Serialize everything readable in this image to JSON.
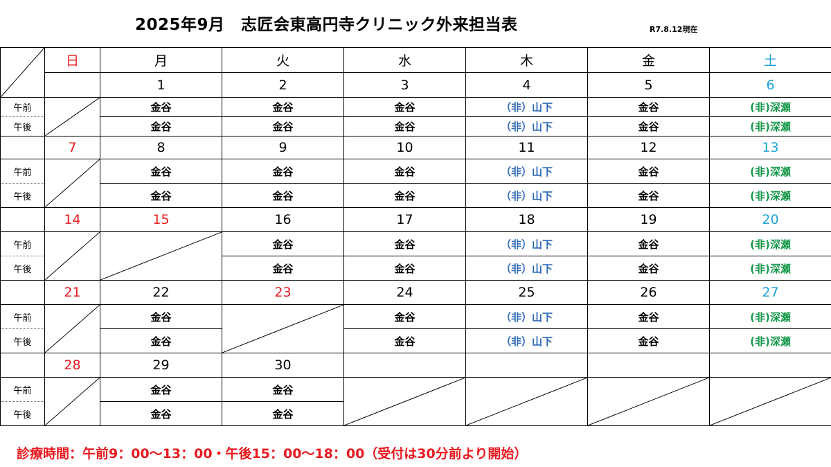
{
  "title": "2025年9月　志匠会東高円寺クリニック外来担当表",
  "as_of": "R7.8.12現在",
  "weekdays": [
    "日",
    "月",
    "火",
    "水",
    "木",
    "金",
    "土"
  ],
  "session_labels": {
    "am": "午前",
    "pm": "午後"
  },
  "weeks": [
    {
      "dates": [
        "",
        "1",
        "2",
        "3",
        "4",
        "5",
        "6"
      ],
      "am": [
        "",
        "金谷",
        "金谷",
        "金谷",
        "（非）山下",
        "金谷",
        "(非)深瀬"
      ],
      "pm": [
        "",
        "金谷",
        "金谷",
        "金谷",
        "（非）山下",
        "金谷",
        "(非)深瀬"
      ]
    },
    {
      "dates": [
        "7",
        "8",
        "9",
        "10",
        "11",
        "12",
        "13"
      ],
      "am": [
        "",
        "金谷",
        "金谷",
        "金谷",
        "（非）山下",
        "金谷",
        "(非)深瀬"
      ],
      "pm": [
        "",
        "金谷",
        "金谷",
        "金谷",
        "（非）山下",
        "金谷",
        "(非)深瀬"
      ]
    },
    {
      "dates": [
        "14",
        "15",
        "16",
        "17",
        "18",
        "19",
        "20"
      ],
      "am": [
        "",
        "",
        "金谷",
        "金谷",
        "（非）山下",
        "金谷",
        "(非)深瀬"
      ],
      "pm": [
        "",
        "",
        "金谷",
        "金谷",
        "（非）山下",
        "金谷",
        "(非)深瀬"
      ]
    },
    {
      "dates": [
        "21",
        "22",
        "23",
        "24",
        "25",
        "26",
        "27"
      ],
      "am": [
        "",
        "金谷",
        "",
        "金谷",
        "（非）山下",
        "金谷",
        "(非)深瀬"
      ],
      "pm": [
        "",
        "金谷",
        "",
        "金谷",
        "（非）山下",
        "金谷",
        "(非)深瀬"
      ]
    },
    {
      "dates": [
        "28",
        "29",
        "30",
        "",
        "",
        "",
        ""
      ],
      "am": [
        "",
        "金谷",
        "金谷",
        "",
        "",
        "",
        ""
      ],
      "pm": [
        "",
        "金谷",
        "金谷",
        "",
        "",
        "",
        ""
      ]
    }
  ],
  "footer": "診療時間：午前9：00～13：00・午後15：00～18：00（受付は30分前より開始）",
  "colors": {
    "holiday": "#e8191f",
    "saturday": "#1aa3d6",
    "part_time": "#2f6bb8",
    "part_time_sat": "#15984a"
  }
}
